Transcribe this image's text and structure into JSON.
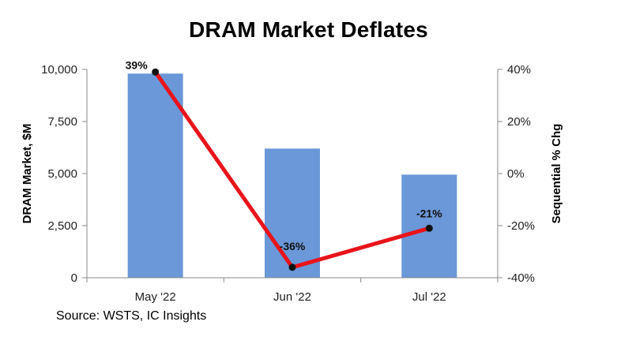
{
  "chart_data": {
    "type": "bar+line",
    "title": "DRAM Market Deflates",
    "categories": [
      "May '22",
      "Jun '22",
      "Jul '22"
    ],
    "series": [
      {
        "name": "DRAM Market, $M",
        "type": "bar",
        "axis": "left",
        "color": "#6a98d8",
        "values": [
          9800,
          6200,
          4950
        ]
      },
      {
        "name": "Sequential % Chg",
        "type": "line",
        "axis": "right",
        "color": "#e8141b",
        "values": [
          39,
          -36,
          -21
        ],
        "labels": [
          "39%",
          "-36%",
          "-21%"
        ]
      }
    ],
    "left_axis": {
      "label": "DRAM Market, $M",
      "min": 0,
      "max": 10000,
      "ticks": [
        0,
        2500,
        5000,
        7500,
        10000
      ],
      "tick_labels": [
        "0",
        "2,500",
        "5,000",
        "7,500",
        "10,000"
      ]
    },
    "right_axis": {
      "label": "Sequential % Chg",
      "min": -40,
      "max": 40,
      "ticks": [
        -40,
        -20,
        0,
        20,
        40
      ],
      "tick_labels": [
        "-40%",
        "-20%",
        "0%",
        "20%",
        "40%"
      ]
    },
    "grid": false,
    "source": "Source:  WSTS, IC Insights"
  }
}
